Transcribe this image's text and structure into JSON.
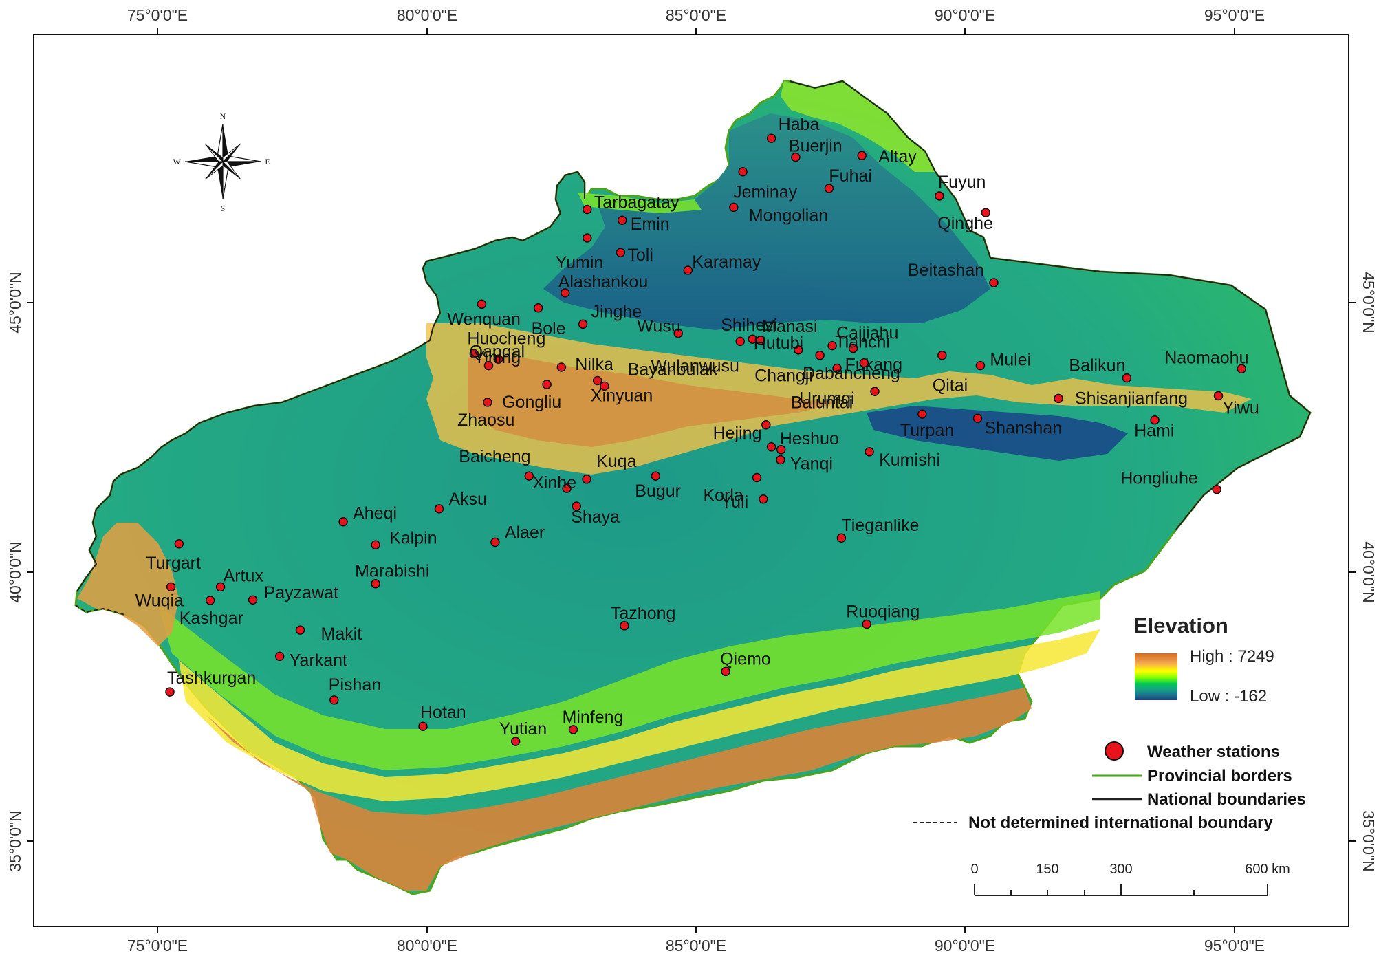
{
  "coordinates": {
    "top_ticks": [
      "75°0'0\"E",
      "80°0'0\"E",
      "85°0'0\"E",
      "90°0'0\"E",
      "95°0'0\"E"
    ],
    "bottom_ticks": [
      "75°0'0\"E",
      "80°0'0\"E",
      "85°0'0\"E",
      "90°0'0\"E",
      "95°0'0\"E"
    ],
    "left_ticks": [
      "45°0'0\"N",
      "40°0'0\"N",
      "35°0'0\"N"
    ],
    "right_ticks": [
      "45°0'0\"N",
      "40°0'0\"N",
      "35°0'0\"N"
    ]
  },
  "compass": {
    "north": "N",
    "south": "S",
    "east": "E",
    "west": "W"
  },
  "stations": [
    {
      "name": "Haba",
      "lon": 86.4,
      "lat": 48.05
    },
    {
      "name": "Buerjin",
      "lon": 86.85,
      "lat": 47.7
    },
    {
      "name": "Altay",
      "lon": 88.08,
      "lat": 47.73
    },
    {
      "name": "Jeminay",
      "lon": 85.87,
      "lat": 47.43
    },
    {
      "name": "Fuhai",
      "lon": 87.47,
      "lat": 47.12
    },
    {
      "name": "Fuyun",
      "lon": 89.52,
      "lat": 46.98
    },
    {
      "name": "Tarbagatay",
      "lon": 82.98,
      "lat": 46.73
    },
    {
      "name": "Mongolian",
      "lon": 85.7,
      "lat": 46.77
    },
    {
      "name": "Qinghe",
      "lon": 90.38,
      "lat": 46.67
    },
    {
      "name": "Emin",
      "lon": 83.63,
      "lat": 46.53
    },
    {
      "name": "Yumin",
      "lon": 82.98,
      "lat": 46.2
    },
    {
      "name": "Toli",
      "lon": 83.6,
      "lat": 45.93
    },
    {
      "name": "Karamay",
      "lon": 84.85,
      "lat": 45.6
    },
    {
      "name": "Beitashan",
      "lon": 90.53,
      "lat": 45.37
    },
    {
      "name": "Alashankou",
      "lon": 82.57,
      "lat": 45.18
    },
    {
      "name": "Wenquan",
      "lon": 81.02,
      "lat": 44.97
    },
    {
      "name": "Bole",
      "lon": 82.07,
      "lat": 44.9
    },
    {
      "name": "Jinghe",
      "lon": 82.9,
      "lat": 44.6
    },
    {
      "name": "Caijiahu",
      "lon": 87.53,
      "lat": 44.2
    },
    {
      "name": "Wusu",
      "lon": 84.67,
      "lat": 44.43
    },
    {
      "name": "Shihezi",
      "lon": 86.05,
      "lat": 44.32
    },
    {
      "name": "Manasi",
      "lon": 86.2,
      "lat": 44.3
    },
    {
      "name": "Fukang",
      "lon": 87.92,
      "lat": 44.15
    },
    {
      "name": "Tianchi",
      "lon": 88.12,
      "lat": 43.88
    },
    {
      "name": "Huocheng",
      "lon": 80.88,
      "lat": 44.05
    },
    {
      "name": "Yining",
      "lon": 81.33,
      "lat": 43.95
    },
    {
      "name": "Wulanwusu",
      "lon": 85.82,
      "lat": 44.28
    },
    {
      "name": "Changji",
      "lon": 87.3,
      "lat": 44.02
    },
    {
      "name": "Hutubi",
      "lon": 86.9,
      "lat": 44.12
    },
    {
      "name": "Qitai",
      "lon": 89.57,
      "lat": 44.02
    },
    {
      "name": "Urumqi",
      "lon": 87.62,
      "lat": 43.78
    },
    {
      "name": "Qapqal",
      "lon": 81.15,
      "lat": 43.83
    },
    {
      "name": "Nilka",
      "lon": 82.5,
      "lat": 43.8
    },
    {
      "name": "Mulei",
      "lon": 90.28,
      "lat": 43.83
    },
    {
      "name": "Balikun",
      "lon": 93.0,
      "lat": 43.6
    },
    {
      "name": "Naomaohu",
      "lon": 95.13,
      "lat": 43.77
    },
    {
      "name": "Gongliu",
      "lon": 82.23,
      "lat": 43.48
    },
    {
      "name": "Bayanbulak",
      "lon": 83.17,
      "lat": 43.55
    },
    {
      "name": "Dabancheng",
      "lon": 88.32,
      "lat": 43.35
    },
    {
      "name": "Shisanjianfang",
      "lon": 91.73,
      "lat": 43.22
    },
    {
      "name": "Yiwu",
      "lon": 94.7,
      "lat": 43.27
    },
    {
      "name": "Zhaosu",
      "lon": 81.13,
      "lat": 43.15
    },
    {
      "name": "Xinyuan",
      "lon": 83.3,
      "lat": 43.45
    },
    {
      "name": "Baluntai",
      "lon": 86.3,
      "lat": 42.73
    },
    {
      "name": "Turpan",
      "lon": 89.2,
      "lat": 42.93
    },
    {
      "name": "Shanshan",
      "lon": 90.23,
      "lat": 42.85
    },
    {
      "name": "Hami",
      "lon": 93.52,
      "lat": 42.82
    },
    {
      "name": "Hejing",
      "lon": 86.4,
      "lat": 42.32
    },
    {
      "name": "Heshuo",
      "lon": 86.58,
      "lat": 42.27
    },
    {
      "name": "Yanqi",
      "lon": 86.57,
      "lat": 42.08
    },
    {
      "name": "Kumishi",
      "lon": 88.22,
      "lat": 42.23
    },
    {
      "name": "Baicheng",
      "lon": 81.9,
      "lat": 41.78
    },
    {
      "name": "Kuqa",
      "lon": 82.97,
      "lat": 41.72
    },
    {
      "name": "Xinhe",
      "lon": 82.6,
      "lat": 41.55
    },
    {
      "name": "Bugur",
      "lon": 84.25,
      "lat": 41.78
    },
    {
      "name": "Yuli",
      "lon": 86.25,
      "lat": 41.35
    },
    {
      "name": "Hongliuhe",
      "lon": 94.67,
      "lat": 41.53
    },
    {
      "name": "Aksu",
      "lon": 80.23,
      "lat": 41.17
    },
    {
      "name": "Shaya",
      "lon": 82.78,
      "lat": 41.22
    },
    {
      "name": "Korla",
      "lon": 86.13,
      "lat": 41.75
    },
    {
      "name": "Aheqi",
      "lon": 78.45,
      "lat": 40.93
    },
    {
      "name": "Kalpin",
      "lon": 79.05,
      "lat": 40.5
    },
    {
      "name": "Alaer",
      "lon": 81.27,
      "lat": 40.55
    },
    {
      "name": "Tieganlike",
      "lon": 87.7,
      "lat": 40.63
    },
    {
      "name": "Turgart",
      "lon": 75.4,
      "lat": 40.52
    },
    {
      "name": "Artux",
      "lon": 76.17,
      "lat": 39.72
    },
    {
      "name": "Marabishi",
      "lon": 79.05,
      "lat": 39.78
    },
    {
      "name": "Wuqia",
      "lon": 75.25,
      "lat": 39.72
    },
    {
      "name": "Payzawat",
      "lon": 76.77,
      "lat": 39.48
    },
    {
      "name": "Kashgar",
      "lon": 75.98,
      "lat": 39.47
    },
    {
      "name": "Tazhong",
      "lon": 83.67,
      "lat": 39.0
    },
    {
      "name": "Ruoqiang",
      "lon": 88.17,
      "lat": 39.03
    },
    {
      "name": "Makit",
      "lon": 77.65,
      "lat": 38.92
    },
    {
      "name": "Yarkant",
      "lon": 77.27,
      "lat": 38.43
    },
    {
      "name": "Qiemo",
      "lon": 85.55,
      "lat": 38.15
    },
    {
      "name": "Tashkurgan",
      "lon": 75.23,
      "lat": 37.77
    },
    {
      "name": "Pishan",
      "lon": 78.28,
      "lat": 37.62
    },
    {
      "name": "Hotan",
      "lon": 79.93,
      "lat": 37.13
    },
    {
      "name": "Minfeng",
      "lon": 82.72,
      "lat": 37.07
    },
    {
      "name": "Yutian",
      "lon": 81.65,
      "lat": 36.85
    }
  ],
  "legend": {
    "elevation_title": "Elevation",
    "high_label": "High : 7249",
    "low_label": "Low : -162",
    "high_value": 7249,
    "low_value": -162,
    "stations_label": "Weather stations",
    "provincial_label": "Provincial borders",
    "national_label": "National boundaries",
    "undetermined_label": "Not determined international boundary",
    "colors": {
      "station": "#e8141b",
      "provincial": "#4aa51c",
      "national": "#222222",
      "ramp": [
        "#d2691e",
        "#f4a460",
        "#ffff00",
        "#7fff00",
        "#00c853",
        "#1aa58a",
        "#1b7a8e",
        "#1c3f7a"
      ]
    }
  },
  "scale_bar": {
    "labels": [
      "0",
      "150",
      "300",
      "600 km"
    ],
    "unit": "km"
  }
}
